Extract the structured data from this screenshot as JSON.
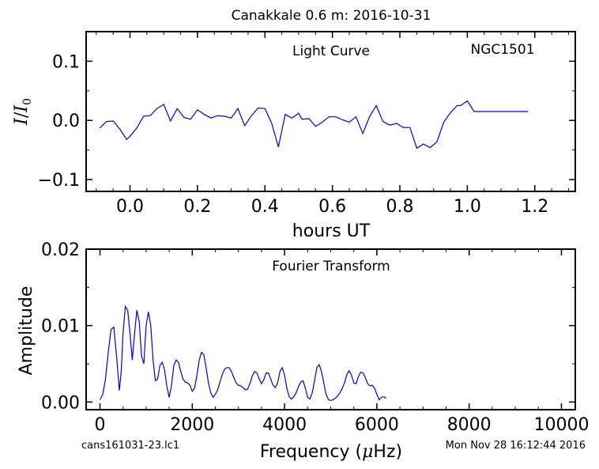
{
  "header": {
    "title": "Canakkale 0.6 m:  2016-10-31"
  },
  "footer": {
    "filename": "cans161031-23.lc1",
    "timestamp": "Mon Nov 28 16:12:44 2016"
  },
  "colors": {
    "line": "#0000dd",
    "axis": "#000000"
  },
  "chart_data": [
    {
      "type": "line",
      "title": "Light Curve",
      "annotation": "NGC1501",
      "xlabel": "hours UT",
      "ylabel_base": "I",
      "ylabel_slash": "/",
      "ylabel_denom": "I",
      "ylabel_sub": "0",
      "xlim": [
        -0.13,
        1.32
      ],
      "ylim": [
        -0.12,
        0.15
      ],
      "xticks": [
        0.0,
        0.2,
        0.4,
        0.6,
        0.8,
        1.0,
        1.2
      ],
      "xtick_labels": [
        "0.0",
        "0.2",
        "0.4",
        "0.6",
        "0.8",
        "1.0",
        "1.2"
      ],
      "yticks": [
        -0.1,
        0.0,
        0.1
      ],
      "ytick_labels": [
        "−0.1",
        "0.0",
        "0.1"
      ],
      "series": [
        {
          "x": [
            -0.09,
            -0.07,
            -0.05,
            -0.03,
            -0.01,
            0.0,
            0.02,
            0.04,
            0.06,
            0.08,
            0.1,
            0.12,
            0.14,
            0.16,
            0.18,
            0.2,
            0.22,
            0.24,
            0.26,
            0.28,
            0.3,
            0.32,
            0.34,
            0.36,
            0.38,
            0.4,
            0.42,
            0.44,
            0.46,
            0.48,
            0.5,
            0.51,
            0.53,
            0.55,
            0.57,
            0.59,
            0.61,
            0.63,
            0.65,
            0.67,
            0.69,
            0.71,
            0.73,
            0.75,
            0.77,
            0.79,
            0.81,
            0.83,
            0.85,
            0.87,
            0.89,
            0.91,
            0.93,
            0.95,
            0.97,
            0.98,
            1.0,
            1.02,
            1.04,
            1.06,
            1.08,
            1.1,
            1.12,
            1.14,
            1.16,
            1.18
          ],
          "y": [
            -0.013,
            -0.002,
            -0.001,
            -0.015,
            -0.032,
            -0.027,
            -0.013,
            0.007,
            0.008,
            0.02,
            0.027,
            -0.001,
            0.02,
            0.005,
            0.002,
            0.018,
            0.01,
            0.004,
            0.008,
            0.007,
            0.004,
            0.02,
            -0.009,
            0.008,
            0.021,
            0.02,
            -0.005,
            -0.045,
            0.01,
            0.004,
            0.012,
            0.002,
            0.003,
            -0.01,
            -0.003,
            0.006,
            0.006,
            0.001,
            -0.003,
            0.006,
            -0.022,
            0.006,
            0.025,
            -0.002,
            -0.008,
            -0.005,
            -0.012,
            -0.012,
            -0.047,
            -0.04,
            -0.046,
            -0.036,
            -0.003,
            0.013,
            0.025,
            0.025,
            0.033,
            0.015,
            0.015,
            0.015,
            0.015,
            0.015,
            0.015,
            0.015,
            0.015,
            0.015
          ]
        }
      ]
    },
    {
      "type": "line",
      "title": "Fourier Transform",
      "xlabel_prefix": "Frequency (",
      "xlabel_mu": "μ",
      "xlabel_suffix": "Hz)",
      "ylabel": "Amplitude",
      "xlim": [
        -300,
        10300
      ],
      "ylim": [
        -0.001,
        0.02
      ],
      "xticks": [
        0,
        2000,
        4000,
        6000,
        8000,
        10000
      ],
      "xtick_labels": [
        "0",
        "2000",
        "4000",
        "6000",
        "8000",
        "10000"
      ],
      "yticks": [
        0.0,
        0.01,
        0.02
      ],
      "ytick_labels": [
        "0.00",
        "0.01",
        "0.02"
      ],
      "series": [
        {
          "x": [
            0,
            60,
            120,
            180,
            240,
            300,
            360,
            420,
            460,
            500,
            550,
            600,
            650,
            700,
            750,
            800,
            850,
            900,
            950,
            1000,
            1050,
            1100,
            1150,
            1200,
            1250,
            1300,
            1350,
            1400,
            1450,
            1500,
            1550,
            1600,
            1650,
            1700,
            1750,
            1800,
            1850,
            1900,
            1950,
            2000,
            2050,
            2100,
            2150,
            2200,
            2250,
            2300,
            2350,
            2400,
            2450,
            2500,
            2550,
            2600,
            2650,
            2700,
            2750,
            2800,
            2850,
            2900,
            2950,
            3000,
            3050,
            3100,
            3150,
            3200,
            3250,
            3300,
            3350,
            3400,
            3450,
            3500,
            3550,
            3600,
            3650,
            3700,
            3750,
            3800,
            3850,
            3900,
            3950,
            4000,
            4050,
            4100,
            4150,
            4200,
            4250,
            4300,
            4350,
            4400,
            4450,
            4500,
            4550,
            4600,
            4650,
            4700,
            4750,
            4800,
            4850,
            4900,
            4950,
            5000,
            5050,
            5100,
            5150,
            5200,
            5250,
            5300,
            5350,
            5400,
            5450,
            5500,
            5550,
            5600,
            5650,
            5700,
            5750,
            5800,
            5850,
            5900,
            5950,
            6000,
            6050,
            6100,
            6150,
            6200
          ],
          "y": [
            0.0003,
            0.001,
            0.003,
            0.0065,
            0.0095,
            0.0098,
            0.006,
            0.0015,
            0.004,
            0.009,
            0.0125,
            0.012,
            0.009,
            0.0055,
            0.009,
            0.012,
            0.0105,
            0.006,
            0.005,
            0.01,
            0.0118,
            0.01,
            0.0055,
            0.0028,
            0.003,
            0.0048,
            0.0052,
            0.0042,
            0.002,
            0.0006,
            0.0022,
            0.0048,
            0.0055,
            0.0052,
            0.004,
            0.003,
            0.0026,
            0.0025,
            0.0022,
            0.0014,
            0.0018,
            0.0035,
            0.0055,
            0.0065,
            0.0062,
            0.0045,
            0.0025,
            0.0012,
            0.0006,
            0.001,
            0.0016,
            0.0026,
            0.0036,
            0.0043,
            0.0045,
            0.0045,
            0.004,
            0.0032,
            0.0025,
            0.0022,
            0.0021,
            0.0019,
            0.0016,
            0.0017,
            0.0024,
            0.0034,
            0.004,
            0.0038,
            0.003,
            0.0024,
            0.0029,
            0.0038,
            0.0038,
            0.003,
            0.0022,
            0.0019,
            0.0025,
            0.004,
            0.0045,
            0.0035,
            0.0018,
            0.0007,
            0.0004,
            0.0007,
            0.0012,
            0.002,
            0.0026,
            0.0028,
            0.0018,
            0.0006,
            0.0004,
            0.0012,
            0.0028,
            0.0045,
            0.0049,
            0.004,
            0.0025,
            0.001,
            0.0003,
            0.0002,
            0.0003,
            0.0005,
            0.0008,
            0.0012,
            0.0018,
            0.0025,
            0.0036,
            0.0041,
            0.0035,
            0.0025,
            0.0024,
            0.0033,
            0.0039,
            0.0038,
            0.0032,
            0.0024,
            0.0021,
            0.0022,
            0.0018,
            0.001,
            0.0003,
            0.0006,
            0.0007,
            0.0005
          ]
        }
      ]
    }
  ]
}
